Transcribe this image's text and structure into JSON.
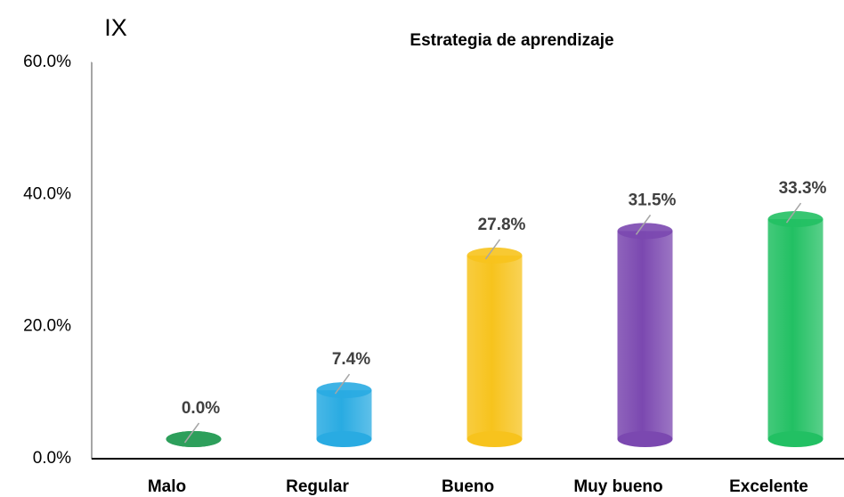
{
  "chart_data": {
    "type": "bar",
    "title": "Estrategia de aprendizaje",
    "annotation": "IX",
    "categories": [
      "Malo",
      "Regular",
      "Bueno",
      "Muy bueno",
      "Excelente"
    ],
    "values": [
      0,
      7.4,
      27.8,
      31.5,
      33.3
    ],
    "value_labels": [
      "0.0%",
      "7.4%",
      "27.8%",
      "31.5%",
      "33.3%"
    ],
    "colors": [
      "#2e9e5b",
      "#29abe2",
      "#f7c31d",
      "#7b48b0",
      "#22c063"
    ],
    "ylim": [
      0,
      60
    ],
    "yticks": [
      {
        "value": 0,
        "label": "0.0%"
      },
      {
        "value": 20,
        "label": "20.0%"
      },
      {
        "value": 40,
        "label": "40.0%"
      },
      {
        "value": 60,
        "label": "60.0%"
      }
    ],
    "grid": false
  }
}
